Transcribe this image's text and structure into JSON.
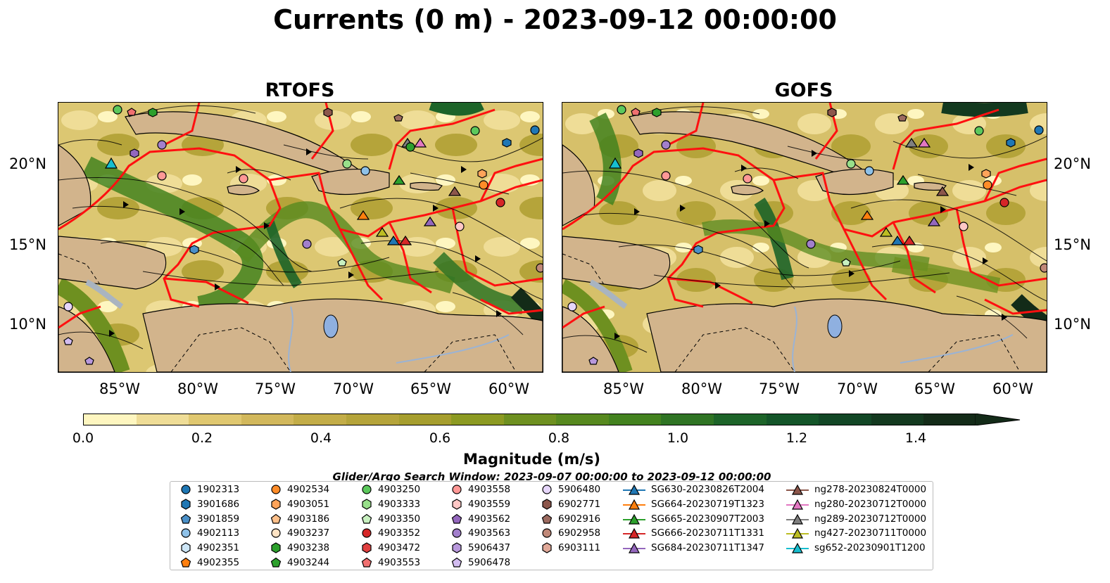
{
  "title": "Currents (0 m) - 2023-09-12 00:00:00",
  "panels": [
    {
      "title": "RTOFS"
    },
    {
      "title": "GOFS"
    }
  ],
  "lat_labels": [
    "20°N",
    "15°N",
    "10°N"
  ],
  "lon_labels": [
    "85°W",
    "80°W",
    "75°W",
    "70°W",
    "65°W",
    "60°W"
  ],
  "colorbar": {
    "label": "Magnitude (m/s)",
    "ticks": [
      "0.0",
      "0.2",
      "0.4",
      "0.6",
      "0.8",
      "1.0",
      "1.2",
      "1.4"
    ],
    "colors": [
      "#fef6c0",
      "#efdd97",
      "#e0c870",
      "#d2b85c",
      "#c3ad48",
      "#b5a43a",
      "#a69e2e",
      "#8c9a22",
      "#6e9020",
      "#57891f",
      "#43821f",
      "#2f7424",
      "#1d6429",
      "#145529",
      "#124726",
      "#13391f",
      "#132b18"
    ]
  },
  "search_window": "Glider/Argo Search Window: 2023-09-07 00:00:00 to 2023-09-12 00:00:00",
  "legend": [
    {
      "label": "1902313",
      "marker": "circle",
      "color": "#1f77b4"
    },
    {
      "label": "3901686",
      "marker": "hexagon",
      "color": "#1f77b4"
    },
    {
      "label": "3901859",
      "marker": "pentagon",
      "color": "#4a90c8"
    },
    {
      "label": "4902113",
      "marker": "circle",
      "color": "#8ec1e8"
    },
    {
      "label": "4902351",
      "marker": "hexagon",
      "color": "#cde6f7"
    },
    {
      "label": "4902355",
      "marker": "pentagon",
      "color": "#ff7f0e"
    },
    {
      "label": "4902534",
      "marker": "circle",
      "color": "#ff8c28"
    },
    {
      "label": "4903051",
      "marker": "hexagon",
      "color": "#ffa45a"
    },
    {
      "label": "4903186",
      "marker": "pentagon",
      "color": "#ffc08a"
    },
    {
      "label": "4903237",
      "marker": "circle",
      "color": "#ffe3c4"
    },
    {
      "label": "4903238",
      "marker": "hexagon",
      "color": "#2ca02c"
    },
    {
      "label": "4903244",
      "marker": "pentagon",
      "color": "#2ca02c"
    },
    {
      "label": "4903250",
      "marker": "circle",
      "color": "#5cc85c"
    },
    {
      "label": "4903333",
      "marker": "hexagon",
      "color": "#98df8a"
    },
    {
      "label": "4903350",
      "marker": "pentagon",
      "color": "#c8f0c0"
    },
    {
      "label": "4903352",
      "marker": "circle",
      "color": "#d62728"
    },
    {
      "label": "4903472",
      "marker": "hexagon",
      "color": "#e04040"
    },
    {
      "label": "4903553",
      "marker": "pentagon",
      "color": "#f07070"
    },
    {
      "label": "4903558",
      "marker": "circle",
      "color": "#ff9896"
    },
    {
      "label": "4903559",
      "marker": "hexagon",
      "color": "#ffc8c6"
    },
    {
      "label": "4903562",
      "marker": "pentagon",
      "color": "#9467bd"
    },
    {
      "label": "4903563",
      "marker": "circle",
      "color": "#a27fcc"
    },
    {
      "label": "5906437",
      "marker": "hexagon",
      "color": "#b898dc"
    },
    {
      "label": "5906478",
      "marker": "pentagon",
      "color": "#d2bcf0"
    },
    {
      "label": "5906480",
      "marker": "circle",
      "color": "#e6d6fa"
    },
    {
      "label": "6902771",
      "marker": "hexagon",
      "color": "#8c564b"
    },
    {
      "label": "6902916",
      "marker": "pentagon",
      "color": "#9c6b60"
    },
    {
      "label": "6902958",
      "marker": "circle",
      "color": "#c08878"
    },
    {
      "label": "6903111",
      "marker": "hexagon",
      "color": "#e0a898"
    },
    {
      "label": "SG630-20230826T2004",
      "marker": "triangle",
      "color": "#1f77b4"
    },
    {
      "label": "SG664-20230719T1323",
      "marker": "triangle",
      "color": "#ff7f0e"
    },
    {
      "label": "SG665-20230907T2003",
      "marker": "triangle",
      "color": "#2ca02c"
    },
    {
      "label": "SG666-20230711T1331",
      "marker": "triangle",
      "color": "#d62728"
    },
    {
      "label": "SG684-20230711T1347",
      "marker": "triangle",
      "color": "#9467bd"
    },
    {
      "label": "ng278-20230824T0000",
      "marker": "triangle",
      "color": "#8c564b"
    },
    {
      "label": "ng280-20230712T0000",
      "marker": "triangle",
      "color": "#e377c2"
    },
    {
      "label": "ng289-20230712T0000",
      "marker": "triangle",
      "color": "#7f7f7f"
    },
    {
      "label": "ng427-20230711T0000",
      "marker": "triangle",
      "color": "#bcbd22"
    },
    {
      "label": "sg652-20230901T1200",
      "marker": "triangle",
      "color": "#17becf"
    }
  ]
}
